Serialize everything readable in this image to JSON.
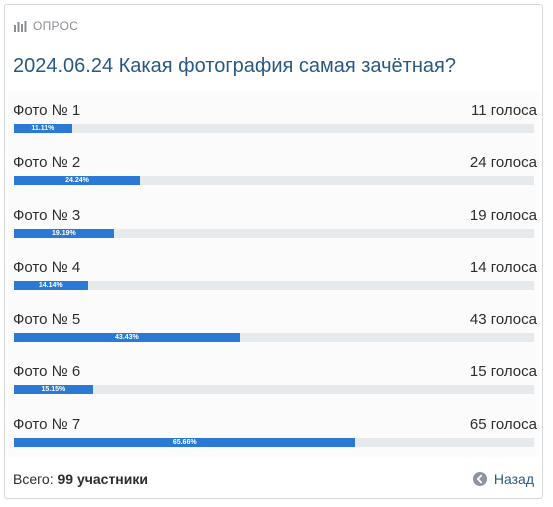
{
  "poll": {
    "header": "ОПРОС",
    "title": "2024.06.24 Какая фотография самая зачётная?",
    "options": [
      {
        "label": "Фото № 1",
        "votes": "11 голоса",
        "percent_text": "11.11%",
        "percent": 11.11
      },
      {
        "label": "Фото № 2",
        "votes": "24 голоса",
        "percent_text": "24.24%",
        "percent": 24.24
      },
      {
        "label": "Фото № 3",
        "votes": "19 голоса",
        "percent_text": "19.19%",
        "percent": 19.19
      },
      {
        "label": "Фото № 4",
        "votes": "14 голоса",
        "percent_text": "14.14%",
        "percent": 14.14
      },
      {
        "label": "Фото № 5",
        "votes": "43 голоса",
        "percent_text": "43.43%",
        "percent": 43.43
      },
      {
        "label": "Фото № 6",
        "votes": "15 голоса",
        "percent_text": "15.15%",
        "percent": 15.15
      },
      {
        "label": "Фото № 7",
        "votes": "65 голоса",
        "percent_text": "65.66%",
        "percent": 65.66
      }
    ],
    "footer": {
      "total_label": "Всего:",
      "total_value": "99 участники",
      "back_label": "Назад"
    },
    "icons": {
      "header": "bar-chart-icon",
      "back": "arrow-left-circle-icon"
    },
    "colors": {
      "accent": "#2a7ad5",
      "title": "#2a5885",
      "track": "#e7eaed"
    }
  }
}
